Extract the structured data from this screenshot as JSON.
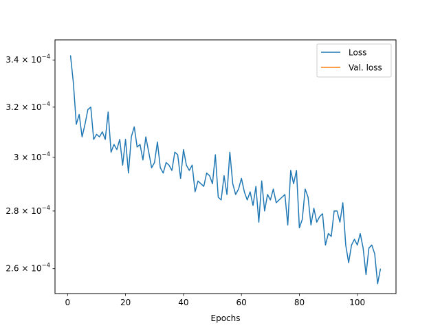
{
  "chart_data": {
    "type": "line",
    "title": "",
    "xlabel": "Epochs",
    "ylabel": "",
    "yscale": "log",
    "xlim": [
      -4.35,
      113.35
    ],
    "ylim": [
      0.0002518,
      0.0003489
    ],
    "xticks": [
      0,
      20,
      40,
      60,
      80,
      100
    ],
    "xtick_labels": [
      "0",
      "20",
      "40",
      "60",
      "80",
      "100"
    ],
    "yticks": [
      0.00026,
      0.00028,
      0.0003,
      0.00032,
      0.00034
    ],
    "ytick_labels": [
      {
        "base": "2.6",
        "exp": "−4"
      },
      {
        "base": "2.8",
        "exp": "−4"
      },
      {
        "base": "3",
        "exp": "−4"
      },
      {
        "base": "3.2",
        "exp": "−4"
      },
      {
        "base": "3.4",
        "exp": "−4"
      }
    ],
    "grid": false,
    "legend": {
      "placement": "top-right",
      "entries": [
        {
          "label": "Loss",
          "color": "#1f77b4"
        },
        {
          "label": "Val. loss",
          "color": "#ff7f0e"
        }
      ]
    },
    "series": [
      {
        "name": "Loss",
        "color": "#1f77b4",
        "x": [
          1,
          2,
          3,
          4,
          5,
          6,
          7,
          8,
          9,
          10,
          11,
          12,
          13,
          14,
          15,
          16,
          17,
          18,
          19,
          20,
          21,
          22,
          23,
          24,
          25,
          26,
          27,
          28,
          29,
          30,
          31,
          32,
          33,
          34,
          35,
          36,
          37,
          38,
          39,
          40,
          41,
          42,
          43,
          44,
          45,
          46,
          47,
          48,
          49,
          50,
          51,
          52,
          53,
          54,
          55,
          56,
          57,
          58,
          59,
          60,
          61,
          62,
          63,
          64,
          65,
          66,
          67,
          68,
          69,
          70,
          71,
          72,
          73,
          74,
          75,
          76,
          77,
          78,
          79,
          80,
          81,
          82,
          83,
          84,
          85,
          86,
          87,
          88,
          89,
          90,
          91,
          92,
          93,
          94,
          95,
          96,
          97,
          98,
          99,
          100,
          101,
          102,
          103,
          104,
          105,
          106,
          107,
          108
        ],
        "y": [
          0.000342,
          0.00033,
          0.000313,
          0.000317,
          0.000308,
          0.000313,
          0.000319,
          0.00032,
          0.000307,
          0.000309,
          0.000308,
          0.00031,
          0.000307,
          0.000318,
          0.000302,
          0.000305,
          0.000303,
          0.000307,
          0.000297,
          0.000307,
          0.000294,
          0.000308,
          0.000312,
          0.000304,
          0.000305,
          0.000299,
          0.000308,
          0.000302,
          0.000296,
          0.000298,
          0.000306,
          0.000296,
          0.000294,
          0.000298,
          0.000297,
          0.000295,
          0.000302,
          0.000301,
          0.000292,
          0.000303,
          0.000297,
          0.000295,
          0.000297,
          0.000287,
          0.000291,
          0.00029,
          0.000289,
          0.000294,
          0.000293,
          0.00029,
          0.000301,
          0.000285,
          0.000284,
          0.000293,
          0.000286,
          0.000302,
          0.00029,
          0.000286,
          0.000288,
          0.000292,
          0.000287,
          0.000284,
          0.000287,
          0.000282,
          0.000289,
          0.000276,
          0.000291,
          0.00028,
          0.000286,
          0.000284,
          0.000288,
          0.000283,
          0.000284,
          0.000285,
          0.000286,
          0.000275,
          0.000295,
          0.00029,
          0.000295,
          0.000274,
          0.000277,
          0.000288,
          0.000285,
          0.000275,
          0.000281,
          0.000276,
          0.000278,
          0.000279,
          0.000268,
          0.000272,
          0.000271,
          0.00028,
          0.00028,
          0.000276,
          0.000283,
          0.000268,
          0.000262,
          0.000268,
          0.00027,
          0.000268,
          0.000272,
          0.000267,
          0.000258,
          0.000267,
          0.000268,
          0.000265,
          0.000255,
          0.00026
        ]
      },
      {
        "name": "Val. loss",
        "color": "#ff7f0e",
        "x": [],
        "y": []
      }
    ]
  }
}
